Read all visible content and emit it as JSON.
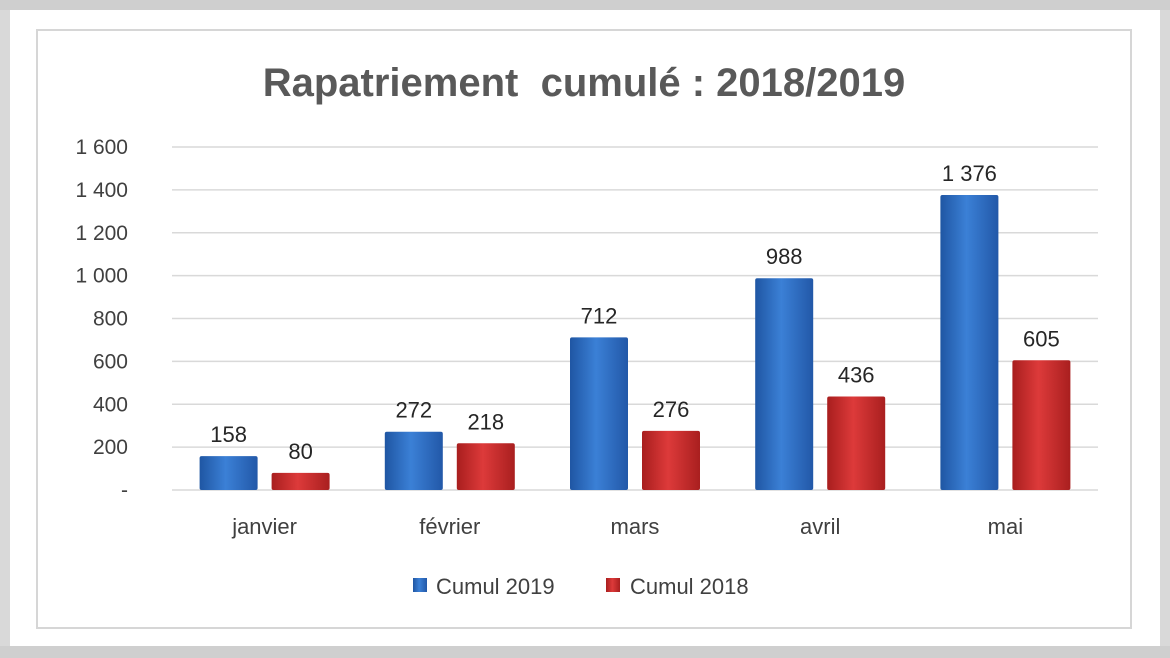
{
  "chart_data": {
    "type": "bar",
    "title": "Rapatriement  cumulé : 2018/2019",
    "categories": [
      "janvier",
      "février",
      "mars",
      "avril",
      "mai"
    ],
    "series": [
      {
        "name": "Cumul 2019",
        "color": "#2f6fc4",
        "values": [
          158,
          272,
          712,
          988,
          1376
        ],
        "labels": [
          "158",
          "272",
          "712",
          "988",
          "1 376"
        ]
      },
      {
        "name": "Cumul 2018",
        "color": "#c62828",
        "values": [
          80,
          218,
          276,
          436,
          605
        ],
        "labels": [
          "80",
          "218",
          "276",
          "436",
          "605"
        ]
      }
    ],
    "ylim": [
      0,
      1600
    ],
    "yticks": [
      0,
      200,
      400,
      600,
      800,
      1000,
      1200,
      1400,
      1600
    ],
    "ytick_labels": [
      "-",
      "200",
      "400",
      "600",
      "800",
      "1 000",
      "1 200",
      "1 400",
      "1 600"
    ],
    "grid": true,
    "legend": "bottom"
  }
}
